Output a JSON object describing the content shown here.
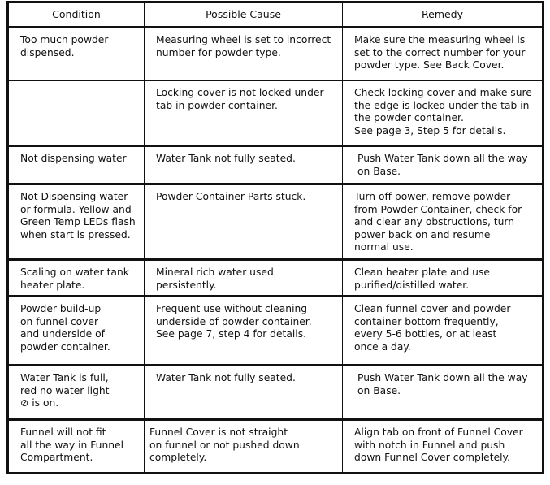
{
  "headers": [
    "Condition",
    "Possible Cause",
    "Remedy"
  ],
  "rows": [
    {
      "condition": [
        "Too much powder",
        "dispensed."
      ],
      "cause": [
        "Measuring wheel is set to incorrect",
        "number for powder type."
      ],
      "remedy": [
        "Make sure the measuring wheel is",
        "set to the correct number for your",
        "powder type.  See Back Cover."
      ]
    },
    {
      "condition": [],
      "cause": [
        "Locking cover is not locked under",
        "tab in powder container."
      ],
      "remedy": [
        "Check locking cover and make sure",
        "the edge is locked under the tab in",
        "the powder container.",
        "See page 3, Step 5 for details."
      ]
    },
    {
      "condition": [
        "Not dispensing water"
      ],
      "cause": [
        "Water Tank not fully seated."
      ],
      "remedy": [
        "Push Water Tank down all the way",
        "on Base."
      ]
    },
    {
      "condition": [
        "Not Dispensing water",
        "or formula. Yellow and",
        "Green Temp LEDs flash",
        "when start is pressed."
      ],
      "cause": [
        "Powder Container Parts stuck."
      ],
      "remedy": [
        "Turn off power, remove powder",
        "from Powder Container, check for",
        "and clear any obstructions, turn",
        "power back on and resume",
        "normal use."
      ]
    },
    {
      "condition": [
        "Scaling on water tank",
        "heater plate."
      ],
      "cause": [
        "Mineral rich water used",
        "persistently."
      ],
      "remedy": [
        "Clean heater plate and use",
        "purified/distilled water."
      ]
    },
    {
      "condition": [
        "Powder build-up",
        "on funnel cover",
        "and underside of",
        "powder container."
      ],
      "cause": [
        "Frequent use without cleaning",
        "underside of powder container.",
        "See page 7, step 4 for details."
      ],
      "remedy": [
        "Clean funnel cover and powder",
        "container bottom frequently,",
        "every 5-6 bottles, or at least",
        "once a day."
      ]
    },
    {
      "condition": [
        "Water Tank is full,",
        "red no water light",
        "⊘ is on."
      ],
      "cause": [
        "Water Tank not fully seated."
      ],
      "remedy": [
        "Push Water Tank down all the way",
        "on Base."
      ]
    },
    {
      "condition": [
        "Funnel will not fit",
        "all the way in Funnel",
        "Compartment."
      ],
      "cause": [
        "Funnel Cover is not straight",
        "on funnel or not pushed down",
        "completely."
      ],
      "remedy": [
        "Align tab on front of Funnel Cover",
        "with notch in Funnel and push",
        "down Funnel Cover completely."
      ]
    }
  ]
}
